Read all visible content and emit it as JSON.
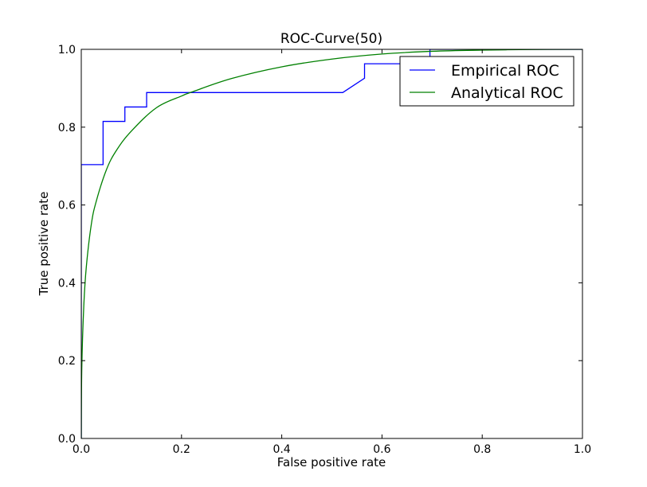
{
  "chart_data": {
    "type": "line",
    "title": "ROC-Curve(50)",
    "xlabel": "False positive rate",
    "ylabel": "True positive rate",
    "xlim": [
      0,
      1
    ],
    "ylim": [
      0,
      1
    ],
    "xticks": [
      "0.0",
      "0.2",
      "0.4",
      "0.6",
      "0.8",
      "1.0"
    ],
    "yticks": [
      "0.0",
      "0.2",
      "0.4",
      "0.6",
      "0.8",
      "1.0"
    ],
    "grid": false,
    "legend_position": "top-right",
    "series": [
      {
        "name": "Empirical ROC",
        "color": "#0000ff",
        "style": "step",
        "x": [
          0.0,
          0.0,
          0.0435,
          0.0435,
          0.087,
          0.087,
          0.1304,
          0.1304,
          0.5217,
          0.5652,
          0.5652,
          0.6957,
          0.6957,
          1.0
        ],
        "y": [
          0.0,
          0.7037,
          0.7037,
          0.8148,
          0.8148,
          0.8519,
          0.8519,
          0.8889,
          0.8889,
          0.9259,
          0.963,
          0.963,
          1.0,
          1.0
        ]
      },
      {
        "name": "Analytical ROC",
        "color": "#008000",
        "style": "smooth",
        "x": [
          0.0,
          0.001,
          0.005,
          0.01,
          0.02,
          0.03,
          0.05,
          0.07,
          0.1,
          0.15,
          0.2,
          0.22,
          0.3,
          0.4,
          0.5,
          0.6,
          0.7,
          0.8,
          0.9,
          1.0
        ],
        "y": [
          0.0,
          0.18,
          0.34,
          0.44,
          0.55,
          0.61,
          0.69,
          0.74,
          0.79,
          0.85,
          0.88,
          0.89,
          0.925,
          0.955,
          0.975,
          0.988,
          0.995,
          0.998,
          0.9995,
          1.0
        ]
      }
    ]
  }
}
